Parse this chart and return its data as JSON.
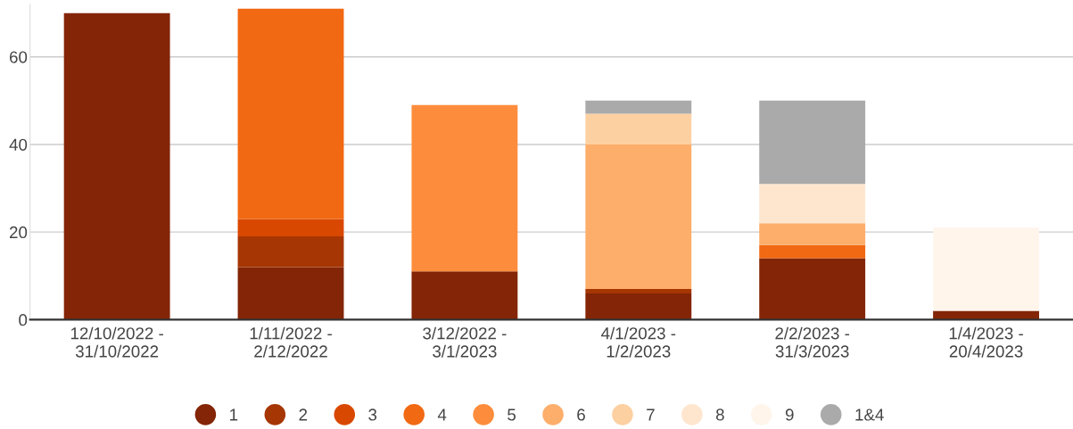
{
  "chart_data": {
    "type": "bar",
    "stacked": true,
    "categories": [
      "12/10/2022 -\n31/10/2022",
      "1/11/2022 -\n2/12/2022",
      "3/12/2022 -\n3/1/2023",
      "4/1/2023 -\n1/2/2023",
      "2/2/2023 -\n31/3/2023",
      "1/4/2023 -\n20/4/2023"
    ],
    "series": [
      {
        "name": "1",
        "color": "#832506",
        "values": [
          70,
          12,
          11,
          6,
          14,
          2
        ]
      },
      {
        "name": "2",
        "color": "#a63603",
        "values": [
          0,
          7,
          0,
          1,
          0,
          0
        ]
      },
      {
        "name": "3",
        "color": "#d94801",
        "values": [
          0,
          4,
          0,
          0,
          0,
          0
        ]
      },
      {
        "name": "4",
        "color": "#f16913",
        "values": [
          0,
          48,
          0,
          0,
          3,
          0
        ]
      },
      {
        "name": "5",
        "color": "#fd8d3c",
        "values": [
          0,
          0,
          38,
          0,
          0,
          0
        ]
      },
      {
        "name": "6",
        "color": "#fdae6b",
        "values": [
          0,
          0,
          0,
          33,
          5,
          0
        ]
      },
      {
        "name": "7",
        "color": "#fdd0a2",
        "values": [
          0,
          0,
          0,
          7,
          0,
          0
        ]
      },
      {
        "name": "8",
        "color": "#fee6ce",
        "values": [
          0,
          0,
          0,
          0,
          9,
          0
        ]
      },
      {
        "name": "9",
        "color": "#fff5eb",
        "values": [
          0,
          0,
          0,
          0,
          0,
          19
        ]
      },
      {
        "name": "1&4",
        "color": "#aaaaaa",
        "values": [
          0,
          0,
          0,
          3,
          19,
          0
        ]
      }
    ],
    "ylim": [
      0,
      72
    ],
    "yticks": [
      0,
      20,
      40,
      60
    ],
    "grid": "y",
    "legend": "bottom",
    "marker": "circle"
  }
}
